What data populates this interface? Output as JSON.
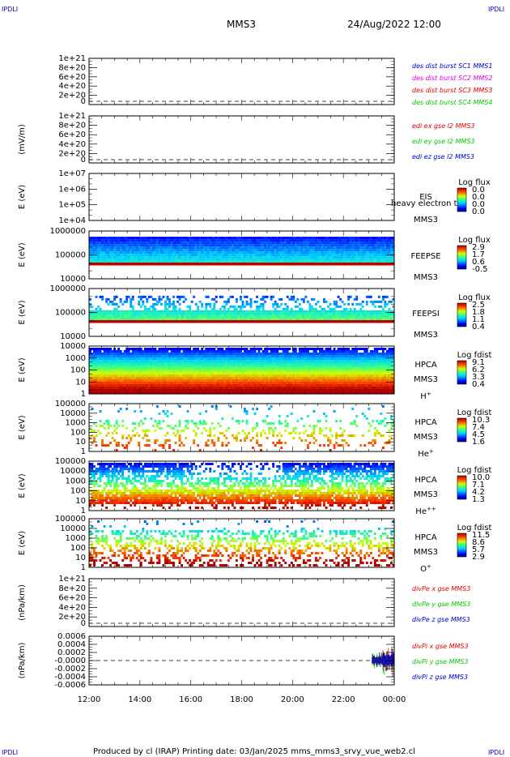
{
  "corner_mark": "IPDLI",
  "title": "MMS3",
  "date": "24/Aug/2022 12:00",
  "footer": "Produced by cl (IRAP)   Printing date: 03/Jan/2025   mms_mms3_srvy_vue_web2.cl",
  "x_ticks": [
    "12:00",
    "14:00",
    "16:00",
    "18:00",
    "20:00",
    "22:00",
    "00:00"
  ],
  "colors": {
    "red": "#e00000",
    "magenta": "#e000e0",
    "green": "#00c800",
    "blue": "#0000c8"
  },
  "chart_data": [
    {
      "type": "line",
      "ylabel": "",
      "yticks": [
        "1e+21",
        "8e+20",
        "6e+20",
        "4e+20",
        "2e+20",
        "0"
      ],
      "series": [
        {
          "name": "des dist burst SC1 MMS1",
          "color": "blue"
        },
        {
          "name": "des dist burst SC2 MMS2",
          "color": "magenta"
        },
        {
          "name": "des dist burst SC3 MMS3",
          "color": "red"
        },
        {
          "name": "des dist burst SC4 MMS4",
          "color": "green"
        }
      ],
      "zero_line": true
    },
    {
      "type": "line",
      "ylabel": "(mV/m)",
      "yticks": [
        "1e+21",
        "8e+20",
        "6e+20",
        "4e+20",
        "2e+20",
        "0"
      ],
      "series": [
        {
          "name": "edi ex gse l2 MMS3",
          "color": "red"
        },
        {
          "name": "edi ey gse l2 MMS3",
          "color": "green"
        },
        {
          "name": "edi ez gse l2 MMS3",
          "color": "blue"
        }
      ],
      "zero_line": true
    },
    {
      "type": "heatmap",
      "ylabel": "E (eV)",
      "yticks": [
        "1e+07",
        "1e+06",
        "1e+05",
        "1e+04"
      ],
      "instrument": [
        "EIS",
        "MMS3"
      ],
      "overlay": "heavy electron to",
      "cbar_title": "Log flux",
      "cbar_ticks": [
        "0.0",
        "0.0",
        "0.0",
        "0.0"
      ],
      "scale": "log",
      "empty": true
    },
    {
      "type": "heatmap",
      "ylabel": "E (eV)",
      "yticks": [
        "1000000",
        "100000",
        "10000"
      ],
      "instrument": [
        "FEEPSE",
        "MMS3"
      ],
      "cbar_title": "Log flux",
      "cbar_ticks": [
        "2.9",
        "1.7",
        "0.6",
        "-0.5"
      ],
      "scale": "log"
    },
    {
      "type": "heatmap",
      "ylabel": "E (eV)",
      "yticks": [
        "1000000",
        "100000",
        "10000"
      ],
      "instrument": [
        "FEEPSI",
        "MMS3"
      ],
      "cbar_title": "Log flux",
      "cbar_ticks": [
        "2.5",
        "1.8",
        "1.1",
        "0.4"
      ],
      "scale": "log"
    },
    {
      "type": "heatmap",
      "ylabel": "E (eV)",
      "yticks": [
        "10000",
        "1000",
        "100",
        "10",
        "1"
      ],
      "instrument": [
        "HPCA",
        "MMS3"
      ],
      "species": "H",
      "species_sup": "+",
      "cbar_title": "Log fdist",
      "cbar_ticks": [
        "9.1",
        "6.2",
        "3.3",
        "0.4"
      ],
      "scale": "log"
    },
    {
      "type": "heatmap",
      "ylabel": "E (eV)",
      "yticks": [
        "100000",
        "10000",
        "1000",
        "100",
        "10",
        "1"
      ],
      "instrument": [
        "HPCA",
        "MMS3"
      ],
      "species": "He",
      "species_sup": "+",
      "cbar_title": "Log fdist",
      "cbar_ticks": [
        "10.3",
        "7.4",
        "4.5",
        "1.6"
      ],
      "scale": "log"
    },
    {
      "type": "heatmap",
      "ylabel": "E (eV)",
      "yticks": [
        "100000",
        "10000",
        "1000",
        "100",
        "10",
        "1"
      ],
      "instrument": [
        "HPCA",
        "MMS3"
      ],
      "species": "He",
      "species_sup": "++",
      "cbar_title": "Log fdist",
      "cbar_ticks": [
        "10.0",
        "7.1",
        "4.2",
        "1.3"
      ],
      "scale": "log"
    },
    {
      "type": "heatmap",
      "ylabel": "E (eV)",
      "yticks": [
        "100000",
        "10000",
        "1000",
        "100",
        "10",
        "1"
      ],
      "instrument": [
        "HPCA",
        "MMS3"
      ],
      "species": "O",
      "species_sup": "+",
      "cbar_title": "Log fdist",
      "cbar_ticks": [
        "11.5",
        "8.6",
        "5.7",
        "2.9"
      ],
      "scale": "log"
    },
    {
      "type": "line",
      "ylabel": "(nPa/km)",
      "yticks": [
        "1e+21",
        "8e+20",
        "6e+20",
        "4e+20",
        "2e+20",
        "0"
      ],
      "series": [
        {
          "name": "divPe x gse MMS3",
          "color": "red"
        },
        {
          "name": "divPe y gse MMS3",
          "color": "green"
        },
        {
          "name": "divPe z gse MMS3",
          "color": "blue"
        }
      ],
      "zero_line": true
    },
    {
      "type": "line",
      "ylabel": "(nPa/km)",
      "yticks": [
        "0.0006",
        "0.0004",
        "0.0002",
        "-0.0000",
        "-0.0002",
        "-0.0004",
        "-0.0006"
      ],
      "series": [
        {
          "name": "divPi x gse MMS3",
          "color": "red"
        },
        {
          "name": "divPi y gse MMS3",
          "color": "green"
        },
        {
          "name": "divPi z gse MMS3",
          "color": "blue"
        }
      ],
      "zero_line": true,
      "data_start": "23:00"
    }
  ]
}
